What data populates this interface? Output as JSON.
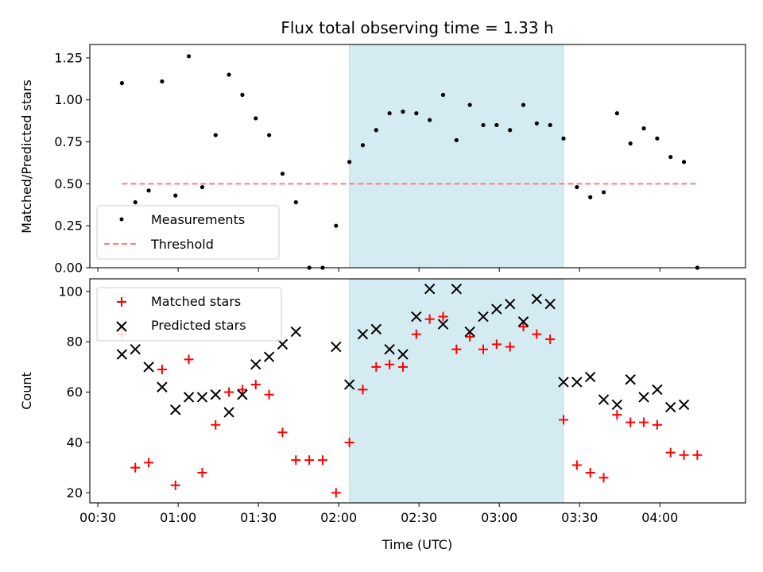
{
  "title": "Flux total observing time = 1.33 h",
  "chart_data": [
    {
      "type": "scatter",
      "panel": "top",
      "ylabel": "Matched/Predicted stars",
      "xlabel": "",
      "ylim": [
        0,
        1.33
      ],
      "yticks": [
        0.0,
        0.25,
        0.5,
        0.75,
        1.0,
        1.25
      ],
      "ytick_labels": [
        "0.00",
        "0.25",
        "0.50",
        "0.75",
        "1.00",
        "1.25"
      ],
      "xlim": [
        "00:27",
        "04:32"
      ],
      "xticks": [
        "00:30",
        "01:00",
        "01:30",
        "02:00",
        "02:30",
        "03:00",
        "03:30",
        "04:00"
      ],
      "shaded_span": {
        "x_start": "02:04",
        "x_end": "03:24",
        "color": "#d4ebf1"
      },
      "legend_position": "lower-left",
      "series": [
        {
          "name": "Measurements",
          "kind": "points",
          "color": "#000000",
          "x": [
            "00:39",
            "00:44",
            "00:49",
            "00:54",
            "00:59",
            "01:04",
            "01:09",
            "01:14",
            "01:19",
            "01:24",
            "01:29",
            "01:34",
            "01:39",
            "01:44",
            "01:49",
            "01:54",
            "01:59",
            "02:04",
            "02:09",
            "02:14",
            "02:19",
            "02:24",
            "02:29",
            "02:34",
            "02:39",
            "02:44",
            "02:49",
            "02:54",
            "02:59",
            "03:04",
            "03:09",
            "03:14",
            "03:19",
            "03:24",
            "03:29",
            "03:34",
            "03:39",
            "03:44",
            "03:49",
            "03:54",
            "03:59",
            "04:04",
            "04:09",
            "04:14"
          ],
          "y": [
            1.1,
            0.39,
            0.46,
            1.11,
            0.43,
            1.26,
            0.48,
            0.79,
            1.15,
            1.03,
            0.89,
            0.79,
            0.56,
            0.39,
            0.0,
            0.0,
            0.25,
            0.63,
            0.73,
            0.82,
            0.92,
            0.93,
            0.92,
            0.88,
            1.03,
            0.76,
            0.97,
            0.85,
            0.85,
            0.82,
            0.97,
            0.86,
            0.85,
            0.77,
            0.48,
            0.42,
            0.45,
            0.92,
            0.74,
            0.83,
            0.77,
            0.66,
            0.63,
            0.0
          ]
        },
        {
          "name": "Threshold",
          "kind": "dashed-line",
          "color": "#ff7b7b",
          "x": [
            "00:39",
            "04:14"
          ],
          "y": [
            0.5,
            0.5
          ]
        }
      ]
    },
    {
      "type": "scatter",
      "panel": "bottom",
      "ylabel": "Count",
      "xlabel": "Time (UTC)",
      "ylim": [
        16,
        105
      ],
      "yticks": [
        20,
        40,
        60,
        80,
        100
      ],
      "ytick_labels": [
        "20",
        "40",
        "60",
        "80",
        "100"
      ],
      "xlim": [
        "00:27",
        "04:32"
      ],
      "xticks": [
        "00:30",
        "01:00",
        "01:30",
        "02:00",
        "02:30",
        "03:00",
        "03:30",
        "04:00"
      ],
      "shaded_span": {
        "x_start": "02:04",
        "x_end": "03:24",
        "color": "#d4ebf1"
      },
      "legend_position": "upper-left",
      "series": [
        {
          "name": "Matched stars",
          "kind": "plus",
          "color": "#ff0000",
          "x": [
            "00:39",
            "00:44",
            "00:49",
            "00:54",
            "00:59",
            "01:04",
            "01:09",
            "01:14",
            "01:19",
            "01:24",
            "01:29",
            "01:34",
            "01:39",
            "01:44",
            "01:49",
            "01:54",
            "01:59",
            "02:04",
            "02:09",
            "02:14",
            "02:19",
            "02:24",
            "02:29",
            "02:34",
            "02:39",
            "02:44",
            "02:49",
            "02:54",
            "02:59",
            "03:04",
            "03:09",
            "03:14",
            "03:19",
            "03:24",
            "03:29",
            "03:34",
            "03:39",
            "03:44",
            "03:49",
            "03:54",
            "03:59",
            "04:04",
            "04:09",
            "04:14"
          ],
          "y": [
            83,
            30,
            32,
            69,
            23,
            73,
            28,
            47,
            60,
            61,
            63,
            59,
            44,
            33,
            33,
            33,
            20,
            40,
            61,
            70,
            71,
            70,
            83,
            89,
            90,
            77,
            82,
            77,
            79,
            78,
            86,
            83,
            81,
            49,
            31,
            28,
            26,
            51,
            48,
            48,
            47,
            36,
            35,
            35
          ]
        },
        {
          "name": "Predicted stars",
          "kind": "x",
          "color": "#000000",
          "x": [
            "00:39",
            "00:44",
            "00:49",
            "00:54",
            "00:59",
            "01:04",
            "01:09",
            "01:14",
            "01:19",
            "01:24",
            "01:29",
            "01:34",
            "01:39",
            "01:44",
            "01:59",
            "02:04",
            "02:09",
            "02:14",
            "02:19",
            "02:24",
            "02:29",
            "02:34",
            "02:39",
            "02:44",
            "02:49",
            "02:54",
            "02:59",
            "03:04",
            "03:09",
            "03:14",
            "03:19",
            "03:24",
            "03:29",
            "03:34",
            "03:39",
            "03:44",
            "03:49",
            "03:54",
            "03:59",
            "04:04",
            "04:09"
          ],
          "y": [
            75,
            77,
            70,
            62,
            53,
            58,
            58,
            59,
            52,
            59,
            71,
            74,
            79,
            84,
            78,
            63,
            83,
            85,
            77,
            75,
            90,
            101,
            87,
            101,
            84,
            90,
            93,
            95,
            88,
            97,
            95,
            64,
            64,
            66,
            57,
            55,
            65,
            58,
            61,
            54,
            55
          ]
        }
      ]
    }
  ]
}
